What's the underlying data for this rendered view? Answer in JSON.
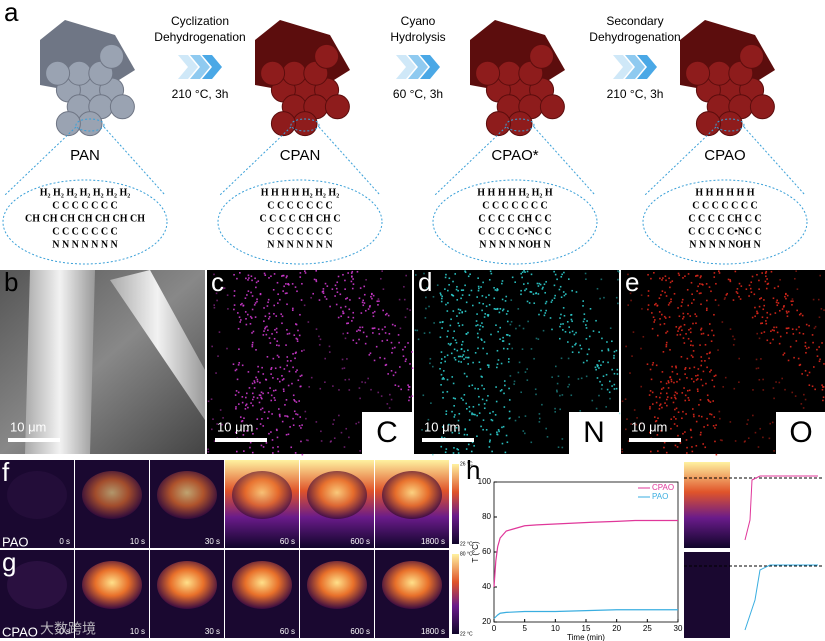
{
  "panel_a": {
    "letter": "a",
    "steps": [
      {
        "label_lines": [
          "Cyclization",
          "Dehydrogenation"
        ],
        "condition": "210 °C, 3h"
      },
      {
        "label_lines": [
          "Cyano",
          "Hydrolysis"
        ],
        "condition": "60 °C, 3h"
      },
      {
        "label_lines": [
          "Secondary",
          "Dehydrogenation"
        ],
        "condition": "210 °C, 3h"
      }
    ],
    "materials": [
      {
        "name": "PAN",
        "structure": [
          "H₂ H₂ H₂ H₂ H₂ H₂ H₂",
          "C C C C C C C",
          "CH CH CH CH CH CH CH",
          "C C C C C C C",
          "N N N N N N N"
        ]
      },
      {
        "name": "CPAN",
        "structure": [
          "H H H H H₂ H₂ H₂",
          "C C C C C C C",
          "C C C C CH CH C",
          "C C C C C C C",
          "N N N N N N N"
        ]
      },
      {
        "name": "CPAO*",
        "structure": [
          "H H H H H₂ H₂ H",
          "C C C C C C C",
          "C C C C CH C C",
          "C C C C C•NC C",
          "N N N N NOH N"
        ]
      },
      {
        "name": "CPAO",
        "structure": [
          "H H H H H H",
          "C C C C C C C",
          "C C C C CH C C",
          "C C C C C•NC C",
          "N N N N NOH N"
        ]
      }
    ]
  },
  "panels_bcde": [
    {
      "letter": "b",
      "scale_bar": "10 μm"
    },
    {
      "letter": "c",
      "scale_bar": "10 μm",
      "element": "C"
    },
    {
      "letter": "d",
      "scale_bar": "10 μm",
      "element": "N"
    },
    {
      "letter": "e",
      "scale_bar": "10 μm",
      "element": "O"
    }
  ],
  "panel_f": {
    "letter": "f",
    "sample": "PAO",
    "times": [
      "0 s",
      "10 s",
      "30 s",
      "60 s",
      "600 s",
      "1800 s"
    ],
    "colorbar": [
      "26 °C",
      "22 °C"
    ]
  },
  "panel_g": {
    "letter": "g",
    "sample": "CPAO",
    "times": [
      "0 s",
      "10 s",
      "30 s",
      "60 s",
      "600 s",
      "1800 s"
    ],
    "colorbar": [
      "80 °C",
      "22 °C"
    ]
  },
  "panel_h": {
    "letter": "h"
  },
  "chart_data": {
    "type": "line",
    "x_label": "Time (min)",
    "y_label": "T (°C)",
    "xlim": [
      0,
      30
    ],
    "xticks": [
      0,
      5,
      10,
      15,
      20,
      25,
      30
    ],
    "ylim": [
      20,
      100
    ],
    "yticks": [
      20,
      40,
      60,
      80,
      100
    ],
    "series": [
      {
        "name": "CPAO",
        "color": "#e0379a",
        "x": [
          0,
          0.3,
          0.6,
          1,
          1.5,
          2,
          3,
          4,
          5,
          7,
          10,
          13,
          16,
          20,
          23,
          26,
          30
        ],
        "values": [
          40,
          55,
          63,
          68,
          70,
          72,
          73,
          74,
          75,
          75.5,
          76,
          76.5,
          77,
          77.5,
          78,
          78,
          78
        ]
      },
      {
        "name": "PAO",
        "color": "#3aaee0",
        "x": [
          0,
          0.3,
          0.6,
          1,
          2,
          5,
          10,
          15,
          20,
          25,
          30
        ],
        "values": [
          22,
          23,
          24,
          25,
          25.5,
          26,
          26,
          26.5,
          27,
          27,
          27
        ]
      }
    ]
  },
  "watermark": "大数跨境"
}
